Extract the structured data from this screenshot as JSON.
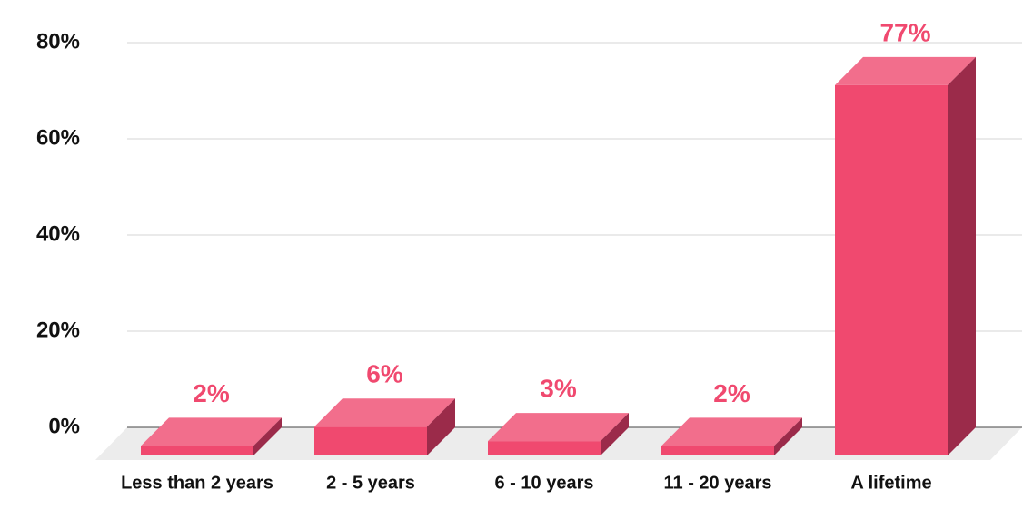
{
  "chart_data": {
    "type": "bar3d",
    "categories": [
      "Less than 2 years",
      "2 - 5 years",
      "6 - 10 years",
      "11 - 20 years",
      "A lifetime"
    ],
    "values": [
      2,
      6,
      3,
      2,
      77
    ],
    "value_labels": [
      "2%",
      "6%",
      "3%",
      "2%",
      "77%"
    ],
    "colors": {
      "front": "#f0496f",
      "top": "#f26e8c",
      "side": "#9b2b4a"
    },
    "ylim": [
      0,
      80
    ],
    "yticks": [
      {
        "value": 0,
        "label": "0%"
      },
      {
        "value": 20,
        "label": "20%"
      },
      {
        "value": 40,
        "label": "40%"
      },
      {
        "value": 60,
        "label": "60%"
      },
      {
        "value": 80,
        "label": "80%"
      }
    ],
    "grid": true
  }
}
